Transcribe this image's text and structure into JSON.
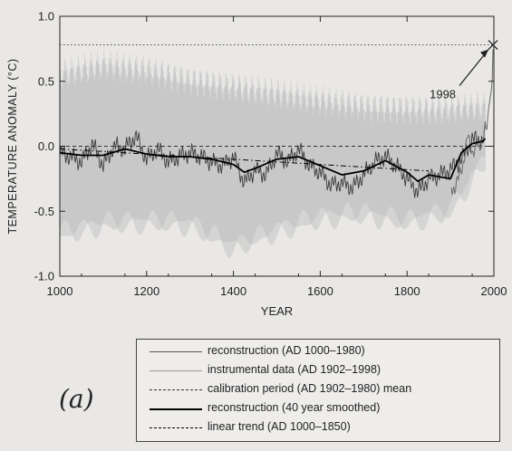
{
  "chart_data": {
    "type": "line",
    "title": "",
    "xlabel": "YEAR",
    "ylabel": "TEMPERATURE ANOMALY (°C)",
    "xlim": [
      1000,
      2000
    ],
    "ylim": [
      -1.0,
      1.0
    ],
    "x_ticks": [
      "1000",
      "1200",
      "1400",
      "1600",
      "1800",
      "2000"
    ],
    "y_ticks": [
      "1.0",
      "0.5",
      "0.0",
      "-0.5",
      "-1.0"
    ],
    "grid": false,
    "legend_position": "bottom-right-below-plot",
    "panel_label": "(a)",
    "annotations": [
      {
        "text": "1998",
        "x": 1998,
        "y": 0.78
      }
    ],
    "reference_lines": [
      {
        "name": "1998 level",
        "y": 0.78,
        "style": "dotted"
      },
      {
        "name": "calibration period (AD 1902–1980) mean",
        "y": 0.0,
        "style": "dashed"
      }
    ],
    "series": [
      {
        "name": "reconstruction (AD 1000–1980)",
        "color": "#3a3a3a",
        "x": [
          1000,
          1025,
          1050,
          1075,
          1100,
          1125,
          1150,
          1175,
          1200,
          1225,
          1250,
          1275,
          1300,
          1325,
          1350,
          1375,
          1400,
          1425,
          1450,
          1475,
          1500,
          1525,
          1550,
          1575,
          1600,
          1625,
          1650,
          1675,
          1700,
          1725,
          1750,
          1775,
          1800,
          1825,
          1850,
          1875,
          1900,
          1925,
          1950,
          1975,
          1980
        ],
        "y": [
          -0.05,
          -0.08,
          -0.12,
          0.02,
          -0.15,
          0.0,
          -0.02,
          0.08,
          -0.1,
          -0.02,
          -0.12,
          -0.08,
          -0.05,
          -0.08,
          -0.12,
          -0.15,
          -0.08,
          -0.28,
          -0.18,
          -0.22,
          -0.05,
          -0.12,
          -0.02,
          -0.15,
          -0.2,
          -0.3,
          -0.28,
          -0.32,
          -0.22,
          -0.12,
          -0.08,
          -0.15,
          -0.25,
          -0.35,
          -0.25,
          -0.22,
          -0.18,
          -0.1,
          0.05,
          0.05,
          0.1
        ]
      },
      {
        "name": "instrumental data (AD 1902–1998)",
        "color": "#6b6b6b",
        "x": [
          1902,
          1910,
          1920,
          1930,
          1940,
          1950,
          1960,
          1970,
          1980,
          1985,
          1990,
          1995,
          1998
        ],
        "y": [
          -0.3,
          -0.35,
          -0.22,
          -0.12,
          0.08,
          -0.05,
          0.02,
          -0.02,
          0.18,
          0.15,
          0.35,
          0.38,
          0.78
        ]
      },
      {
        "name": "reconstruction (40 year smoothed)",
        "color": "#000000",
        "x": [
          1000,
          1050,
          1100,
          1150,
          1200,
          1250,
          1300,
          1350,
          1400,
          1425,
          1450,
          1500,
          1550,
          1600,
          1650,
          1700,
          1750,
          1800,
          1825,
          1850,
          1900,
          1925,
          1950,
          1975,
          1980
        ],
        "y": [
          -0.05,
          -0.07,
          -0.07,
          -0.02,
          -0.06,
          -0.08,
          -0.08,
          -0.1,
          -0.14,
          -0.2,
          -0.17,
          -0.1,
          -0.08,
          -0.15,
          -0.22,
          -0.19,
          -0.11,
          -0.2,
          -0.27,
          -0.22,
          -0.25,
          -0.05,
          0.02,
          0.04,
          0.06
        ]
      },
      {
        "name": "linear trend (AD 1000–1850)",
        "color": "#000000",
        "x": [
          1000,
          1850
        ],
        "y": [
          -0.02,
          -0.19
        ]
      }
    ],
    "uncertainty_band": {
      "name": "",
      "color": "#bdbdbd",
      "x": [
        1000,
        1100,
        1200,
        1300,
        1400,
        1500,
        1600,
        1700,
        1800,
        1900,
        1980
      ],
      "upper": [
        0.55,
        0.62,
        0.58,
        0.5,
        0.45,
        0.4,
        0.35,
        0.3,
        0.28,
        0.28,
        0.3
      ],
      "lower": [
        -0.68,
        -0.6,
        -0.58,
        -0.6,
        -0.78,
        -0.65,
        -0.55,
        -0.52,
        -0.58,
        -0.5,
        -0.1
      ]
    }
  },
  "legend": {
    "items": [
      {
        "label": "reconstruction (AD 1000–1980)",
        "style": "solid-thin",
        "color": "#555555"
      },
      {
        "label": "instrumental data (AD 1902–1998)",
        "style": "solid-thin",
        "color": "#9a9a9a"
      },
      {
        "label": "calibration period (AD 1902–1980) mean",
        "style": "dashed",
        "color": "#333333"
      },
      {
        "label": "reconstruction (40 year smoothed)",
        "style": "solid-thick",
        "color": "#000000"
      },
      {
        "label": "linear trend (AD 1000–1850)",
        "style": "dash-dot",
        "color": "#000000"
      }
    ]
  }
}
